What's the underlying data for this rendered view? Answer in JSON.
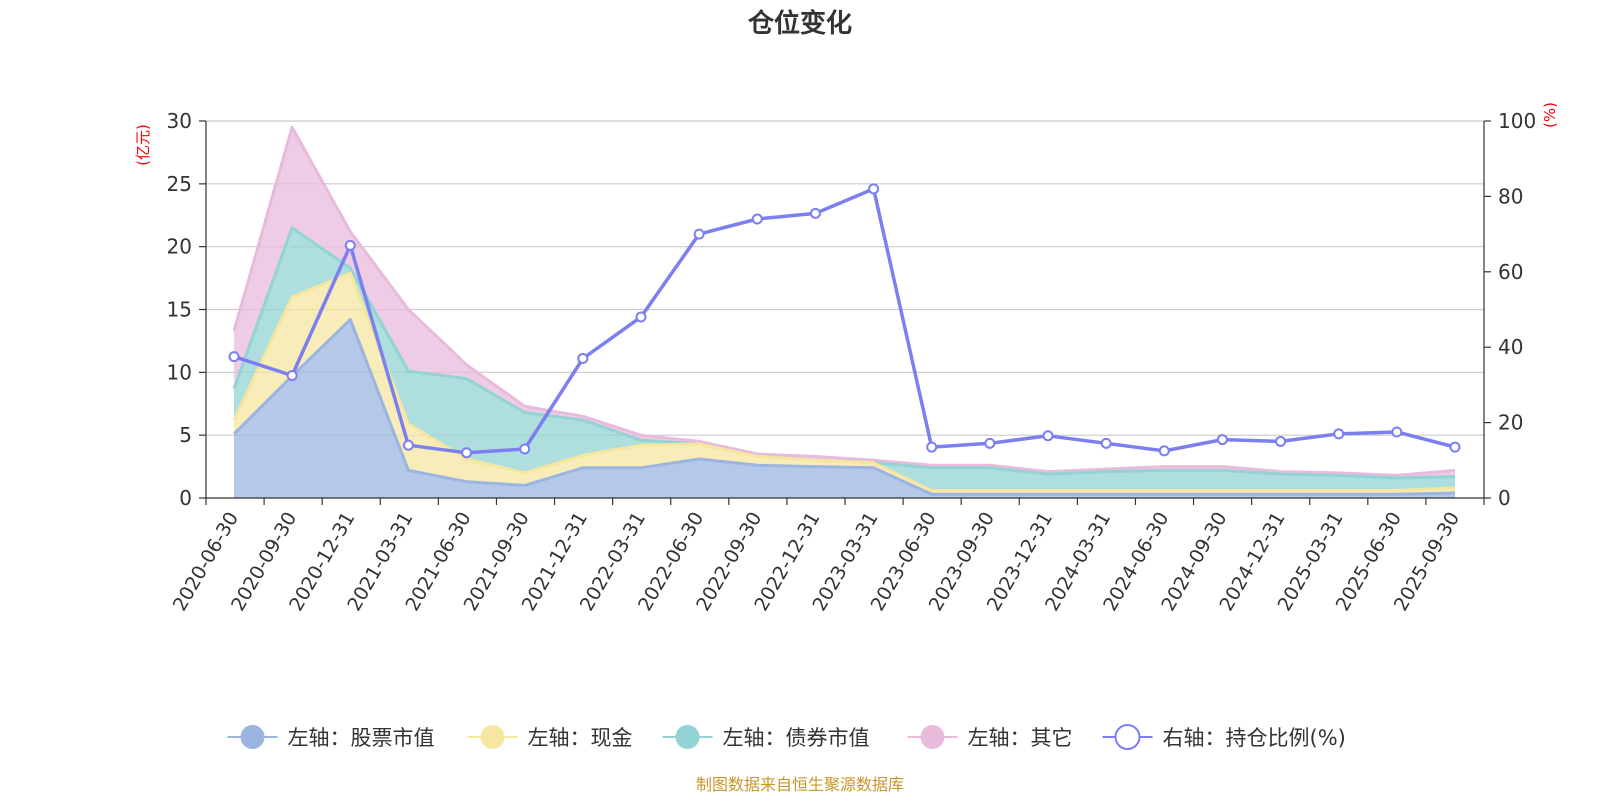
{
  "chart_data": {
    "type": "area",
    "title": "仓位变化",
    "left_unit": "(亿元)",
    "right_unit": "(%)",
    "categories": [
      "2020-06-30",
      "2020-09-30",
      "2020-12-31",
      "2021-03-31",
      "2021-06-30",
      "2021-09-30",
      "2021-12-31",
      "2022-03-31",
      "2022-06-30",
      "2022-09-30",
      "2022-12-31",
      "2023-03-31",
      "2023-06-30",
      "2023-09-30",
      "2023-12-31",
      "2024-03-31",
      "2024-06-30",
      "2024-09-30",
      "2024-12-31",
      "2025-03-31",
      "2025-06-30",
      "2025-09-30"
    ],
    "left_axis": {
      "ylim": [
        0,
        30
      ],
      "ticks": [
        "0",
        "5",
        "10",
        "15",
        "20",
        "25",
        "30"
      ]
    },
    "right_axis": {
      "ylim": [
        0,
        100
      ],
      "ticks": [
        "0",
        "20",
        "40",
        "60",
        "80",
        "100"
      ]
    },
    "stacked_series": [
      {
        "name": "左轴：股票市值",
        "color": "#9bb5e0",
        "values": [
          5.1,
          9.7,
          14.2,
          2.2,
          1.3,
          1.0,
          2.4,
          2.4,
          3.1,
          2.6,
          2.5,
          2.4,
          0.3,
          0.3,
          0.3,
          0.3,
          0.3,
          0.3,
          0.3,
          0.3,
          0.3,
          0.4
        ]
      },
      {
        "name": "左轴：现金",
        "color": "#f5e6a0",
        "values": [
          1.1,
          6.3,
          3.7,
          3.7,
          1.8,
          1.0,
          1.0,
          1.8,
          1.2,
          0.7,
          0.5,
          0.4,
          0.3,
          0.3,
          0.3,
          0.3,
          0.3,
          0.3,
          0.3,
          0.3,
          0.3,
          0.4
        ]
      },
      {
        "name": "左轴：债券市值",
        "color": "#93d3d3",
        "values": [
          2.5,
          5.5,
          0.4,
          4.2,
          6.4,
          4.8,
          2.8,
          0.4,
          0,
          0,
          0,
          0,
          1.8,
          1.8,
          1.3,
          1.5,
          1.6,
          1.6,
          1.3,
          1.2,
          1.0,
          0.9
        ]
      },
      {
        "name": "左轴：其它",
        "color": "#e8bbdc",
        "values": [
          4.6,
          8.0,
          2.9,
          4.9,
          1.1,
          0.5,
          0.3,
          0.4,
          0.2,
          0.2,
          0.3,
          0.2,
          0.2,
          0.2,
          0.2,
          0.2,
          0.3,
          0.3,
          0.2,
          0.2,
          0.2,
          0.5
        ]
      }
    ],
    "line_series": {
      "name": "右轴：持仓比例(%)",
      "color": "#7b7ff0",
      "values": [
        37.5,
        32.5,
        67,
        14,
        12,
        13,
        37,
        48,
        70,
        74,
        75.5,
        82,
        13.5,
        14.5,
        16.5,
        14.5,
        12.5,
        15.5,
        15,
        17,
        17.5,
        13.5
      ]
    },
    "legend": [
      {
        "label": "左轴：股票市值",
        "color": "#9bb5e0",
        "marker": "filled"
      },
      {
        "label": "左轴：现金",
        "color": "#f5e6a0",
        "marker": "filled"
      },
      {
        "label": "左轴：债券市值",
        "color": "#93d3d3",
        "marker": "filled"
      },
      {
        "label": "左轴：其它",
        "color": "#e8bbdc",
        "marker": "filled"
      },
      {
        "label": "右轴：持仓比例(%)",
        "color": "#7b7ff0",
        "marker": "hollow"
      }
    ],
    "legend_position": "bottom",
    "grid": true,
    "source": "制图数据来自恒生聚源数据库"
  }
}
